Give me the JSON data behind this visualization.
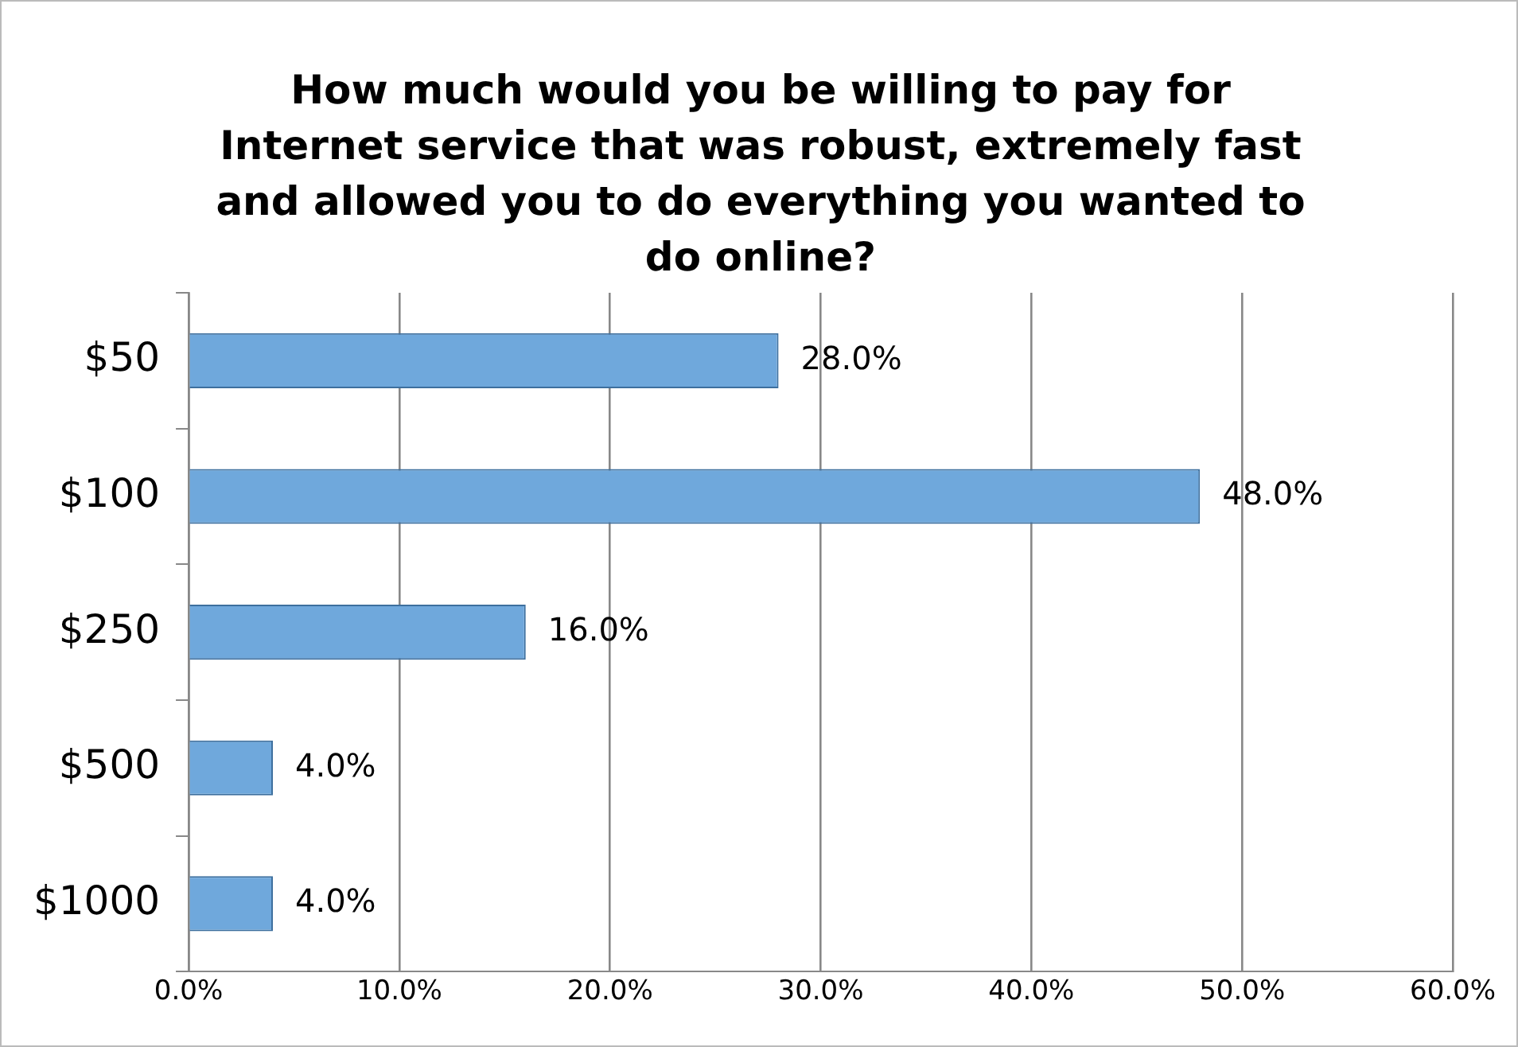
{
  "chart_data": {
    "type": "bar",
    "orientation": "horizontal",
    "title": "How much would you be willing to pay for Internet service that was robust, extremely fast and allowed you to do everything you wanted to do online?",
    "categories": [
      "$50",
      "$100",
      "$250",
      "$500",
      "$1000"
    ],
    "values": [
      28,
      48,
      16,
      4,
      4
    ],
    "value_labels": [
      "28.0%",
      "48.0%",
      "16.0%",
      "4.0%",
      "4.0%"
    ],
    "color": "#6fa8dc",
    "xlim": [
      0,
      60
    ],
    "xticks": [
      {
        "value": 0,
        "label": "0.0%"
      },
      {
        "value": 10,
        "label": "10.0%"
      },
      {
        "value": 20,
        "label": "20.0%"
      },
      {
        "value": 30,
        "label": "30.0%"
      },
      {
        "value": 40,
        "label": "40.0%"
      },
      {
        "value": 50,
        "label": "50.0%"
      },
      {
        "value": 60,
        "label": "60.0%"
      }
    ],
    "grid": "x",
    "legend": false
  }
}
